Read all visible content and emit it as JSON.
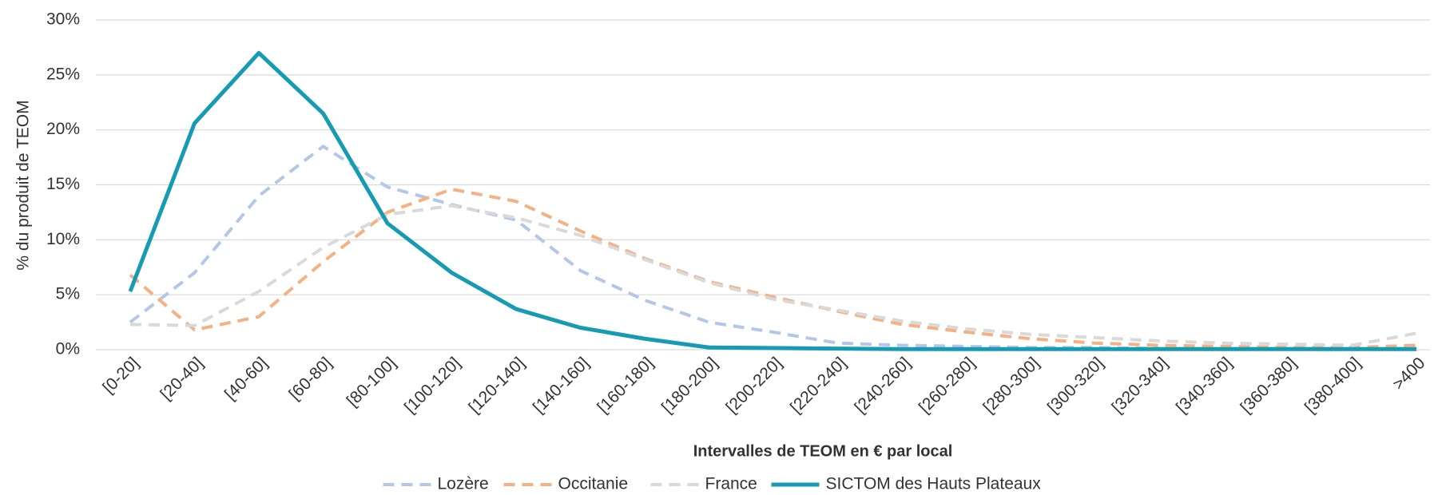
{
  "chart_data": {
    "type": "line",
    "x_label": "Intervalles de TEOM en € par local",
    "y_label": "% du produit de TEOM",
    "categories": [
      "[0-20]",
      "[20-40]",
      "[40-60]",
      "[60-80]",
      "[80-100]",
      "[100-120]",
      "[120-140]",
      "[140-160]",
      "[160-180]",
      "[180-200]",
      "[200-220]",
      "[220-240]",
      "[240-260]",
      "[260-280]",
      "[280-300]",
      "[300-320]",
      "[320-340]",
      "[340-360]",
      "[360-380]",
      "[380-400]",
      ">400"
    ],
    "series": [
      {
        "name": "Lozère",
        "color": "#b4c7e7",
        "style": "dashed",
        "values": [
          2.5,
          7,
          14,
          18.5,
          14.8,
          13.2,
          11.8,
          7.2,
          4.5,
          2.5,
          1.6,
          0.6,
          0.4,
          0.3,
          0.2,
          0.2,
          0.1,
          0.1,
          0.1,
          0.1,
          0.1
        ]
      },
      {
        "name": "Occitanie",
        "color": "#f4b183",
        "style": "dashed",
        "values": [
          6.8,
          1.8,
          3,
          8,
          12.5,
          14.6,
          13.5,
          10.8,
          8.3,
          6.2,
          4.8,
          3.5,
          2.3,
          1.6,
          1,
          0.6,
          0.4,
          0.3,
          0.2,
          0.2,
          0.4
        ]
      },
      {
        "name": "France",
        "color": "#d9d9d9",
        "style": "dashed",
        "values": [
          2.3,
          2.2,
          5.3,
          9.3,
          12.3,
          13.1,
          12,
          10.4,
          8.2,
          6.1,
          4.6,
          3.6,
          2.6,
          1.9,
          1.4,
          1.1,
          0.8,
          0.6,
          0.5,
          0.4,
          1.5
        ]
      },
      {
        "name": "SICTOM des Hauts Plateaux",
        "color": "#169bb2",
        "style": "solid",
        "values": [
          5.3,
          20.6,
          27,
          21.5,
          11.5,
          7,
          3.7,
          2,
          1,
          0.2,
          0.15,
          0.1,
          0.05,
          0.05,
          0.05,
          0.05,
          0.05,
          0.05,
          0.05,
          0.05,
          0.05
        ]
      }
    ],
    "ylim": [
      0,
      30
    ],
    "yticks": [
      {
        "value": 0,
        "label": "0%"
      },
      {
        "value": 5,
        "label": "5%"
      },
      {
        "value": 10,
        "label": "10%"
      },
      {
        "value": 15,
        "label": "15%"
      },
      {
        "value": 20,
        "label": "20%"
      },
      {
        "value": 25,
        "label": "25%"
      },
      {
        "value": 30,
        "label": "30%"
      }
    ],
    "grid": true,
    "legend": "bottom"
  }
}
